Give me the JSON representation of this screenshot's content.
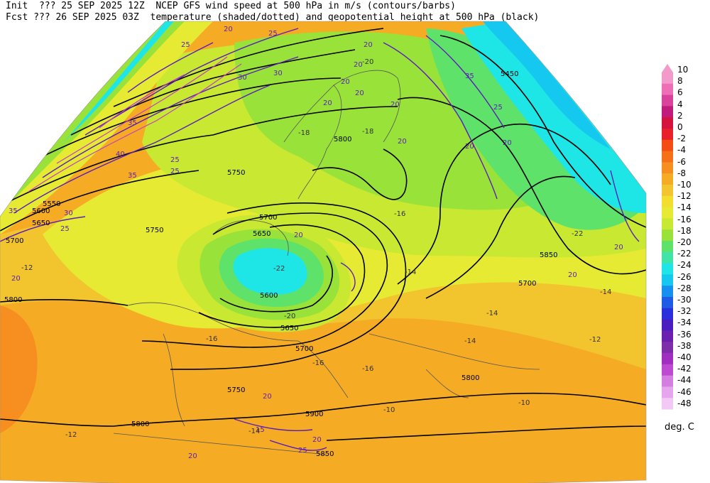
{
  "header": {
    "line1": "Init  ??? 25 SEP 2025 12Z  NCEP GFS wind speed at 500 hPa in m/s (contours/barbs)",
    "line2": "Fcst ??? 26 SEP 2025 03Z  temperature (shaded/dotted) and geopotential height at 500 hPa (black)"
  },
  "legend": {
    "units": "deg. C",
    "levels": [
      "10",
      "8",
      "6",
      "4",
      "2",
      "0",
      "-2",
      "-4",
      "-6",
      "-8",
      "-10",
      "-12",
      "-14",
      "-16",
      "-18",
      "-20",
      "-22",
      "-24",
      "-26",
      "-28",
      "-30",
      "-32",
      "-34",
      "-36",
      "-38",
      "-40",
      "-42",
      "-44",
      "-46",
      "-48"
    ],
    "colors": [
      "#f29ac9",
      "#ee6fb6",
      "#d9439c",
      "#c21b7e",
      "#d4143c",
      "#e8202a",
      "#f44d14",
      "#f6701a",
      "#f68e20",
      "#f6ab25",
      "#f2c42e",
      "#f1de2f",
      "#e6ea33",
      "#c8e832",
      "#99e23a",
      "#5fe26a",
      "#3fe4a6",
      "#1fe6e6",
      "#14c8f0",
      "#1690ef",
      "#1f5ce6",
      "#2a2edc",
      "#4a1dc0",
      "#6b1fb0",
      "#7e2ea8",
      "#a02ec0",
      "#be4ad2",
      "#d57ee2",
      "#e6a6ee",
      "#f2c8f6"
    ]
  },
  "map": {
    "height_labels": [
      "5800",
      "5750",
      "5700",
      "5650",
      "5600",
      "5550",
      "5450",
      "5850",
      "5900",
      "5800",
      "5750",
      "5700",
      "5650",
      "5600",
      "5700",
      "5850",
      "5800",
      "5700",
      "5650",
      "5750",
      "5800"
    ],
    "wind_labels": [
      "20",
      "25",
      "25",
      "30",
      "35",
      "35",
      "40",
      "35",
      "30",
      "25",
      "20",
      "20",
      "20",
      "20",
      "25",
      "35",
      "20",
      "20",
      "25",
      "20",
      "20",
      "20",
      "15",
      "20",
      "25",
      "30",
      "20",
      "20",
      "20",
      "25",
      "20",
      "20",
      "20"
    ],
    "temp_labels": [
      "-12",
      "-14",
      "-16",
      "-18",
      "-20",
      "-22",
      "-22",
      "-14",
      "-16",
      "-10",
      "-12",
      "-14",
      "-10",
      "-12",
      "-14",
      "-16",
      "-18",
      "-20",
      "-14",
      "-16"
    ]
  }
}
